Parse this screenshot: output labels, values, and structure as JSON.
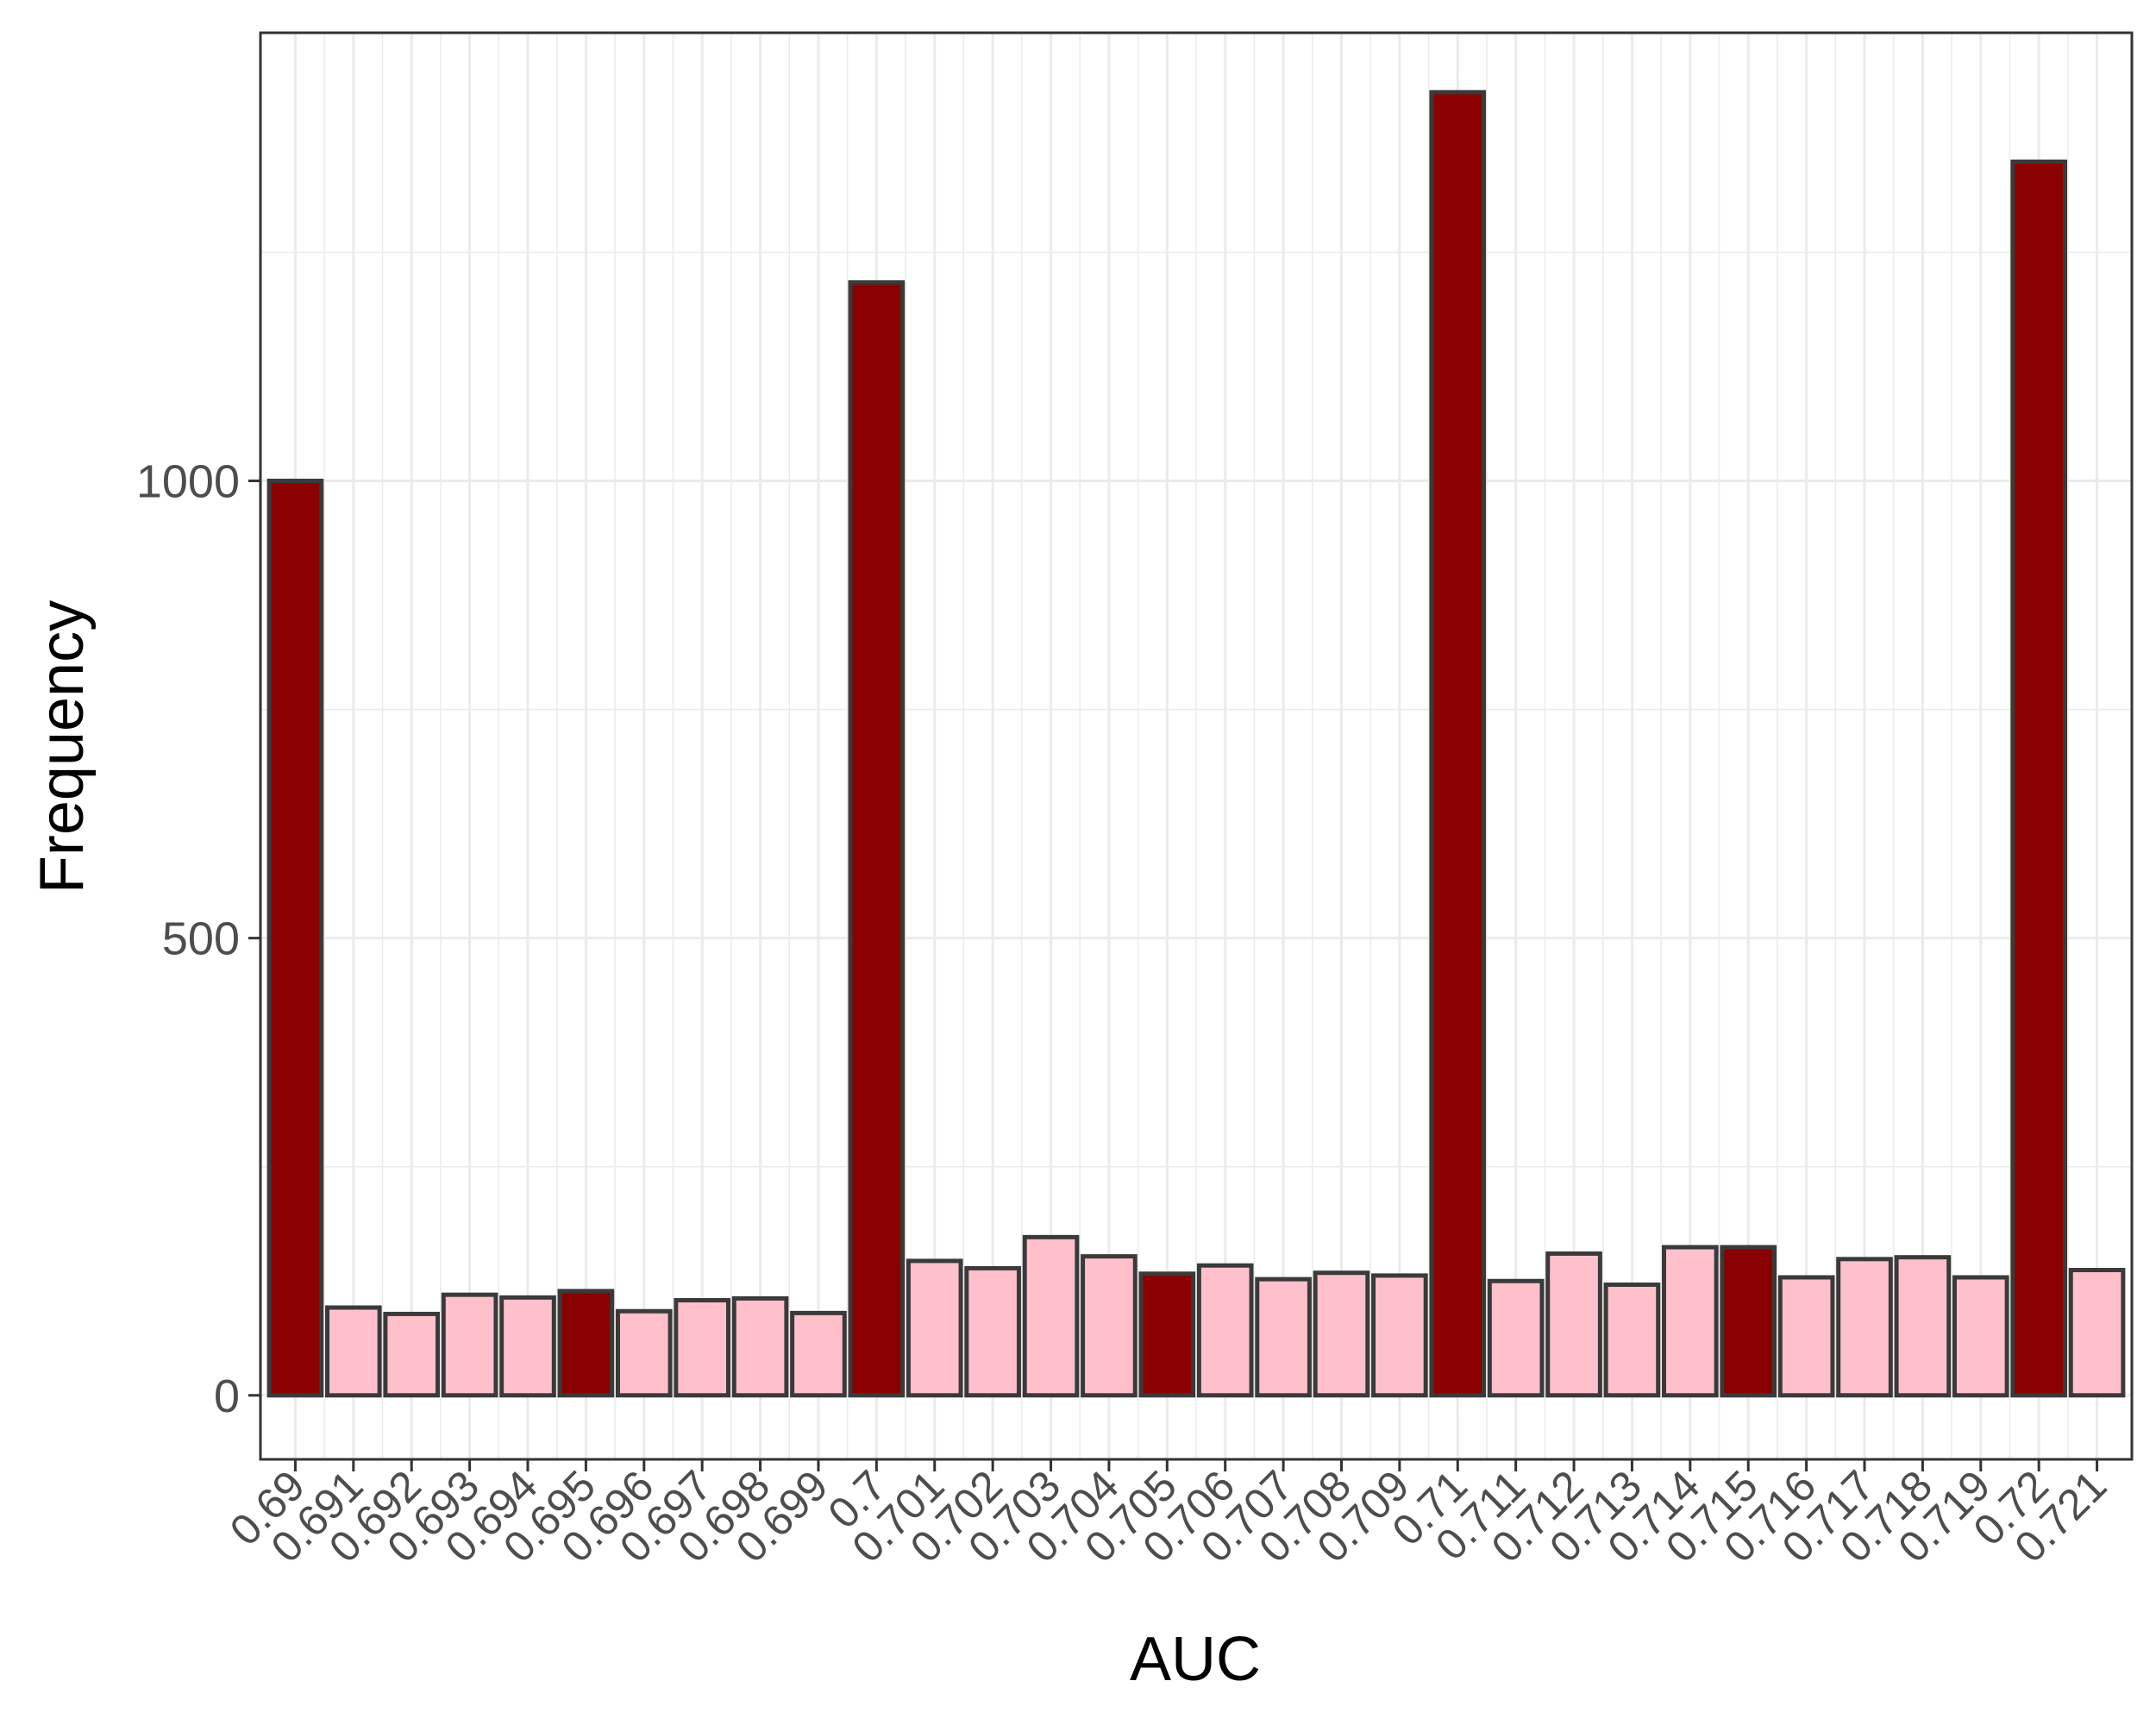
{
  "chart_data": {
    "type": "bar",
    "xlabel": "AUC",
    "ylabel": "Frequency",
    "categories": [
      "0.69",
      "0.691",
      "0.692",
      "0.693",
      "0.694",
      "0.695",
      "0.696",
      "0.697",
      "0.698",
      "0.699",
      "0.7",
      "0.701",
      "0.702",
      "0.703",
      "0.704",
      "0.705",
      "0.706",
      "0.707",
      "0.708",
      "0.709",
      "0.71",
      "0.711",
      "0.712",
      "0.713",
      "0.714",
      "0.715",
      "0.716",
      "0.717",
      "0.718",
      "0.719",
      "0.72",
      "0.721"
    ],
    "values": [
      1000,
      96,
      89,
      110,
      107,
      114,
      92,
      104,
      106,
      90,
      1217,
      147,
      139,
      173,
      152,
      133,
      142,
      127,
      134,
      131,
      1425,
      125,
      155,
      121,
      162,
      162,
      129,
      149,
      151,
      129,
      1349,
      137
    ],
    "highlight": [
      true,
      false,
      false,
      false,
      false,
      true,
      false,
      false,
      false,
      false,
      true,
      false,
      false,
      false,
      false,
      true,
      false,
      false,
      false,
      false,
      true,
      false,
      false,
      false,
      false,
      true,
      false,
      false,
      false,
      false,
      true,
      false
    ],
    "colors": {
      "highlight": "#8B0000",
      "normal": "#FFC0CB",
      "outline": "#3a3a3a",
      "grid": "#ebebeb",
      "panel_border": "#333333",
      "text": "#4d4d4d"
    },
    "yticks": [
      0,
      500,
      1000
    ],
    "ylim": [
      -70,
      1490
    ],
    "grid": true,
    "legend": "none"
  }
}
